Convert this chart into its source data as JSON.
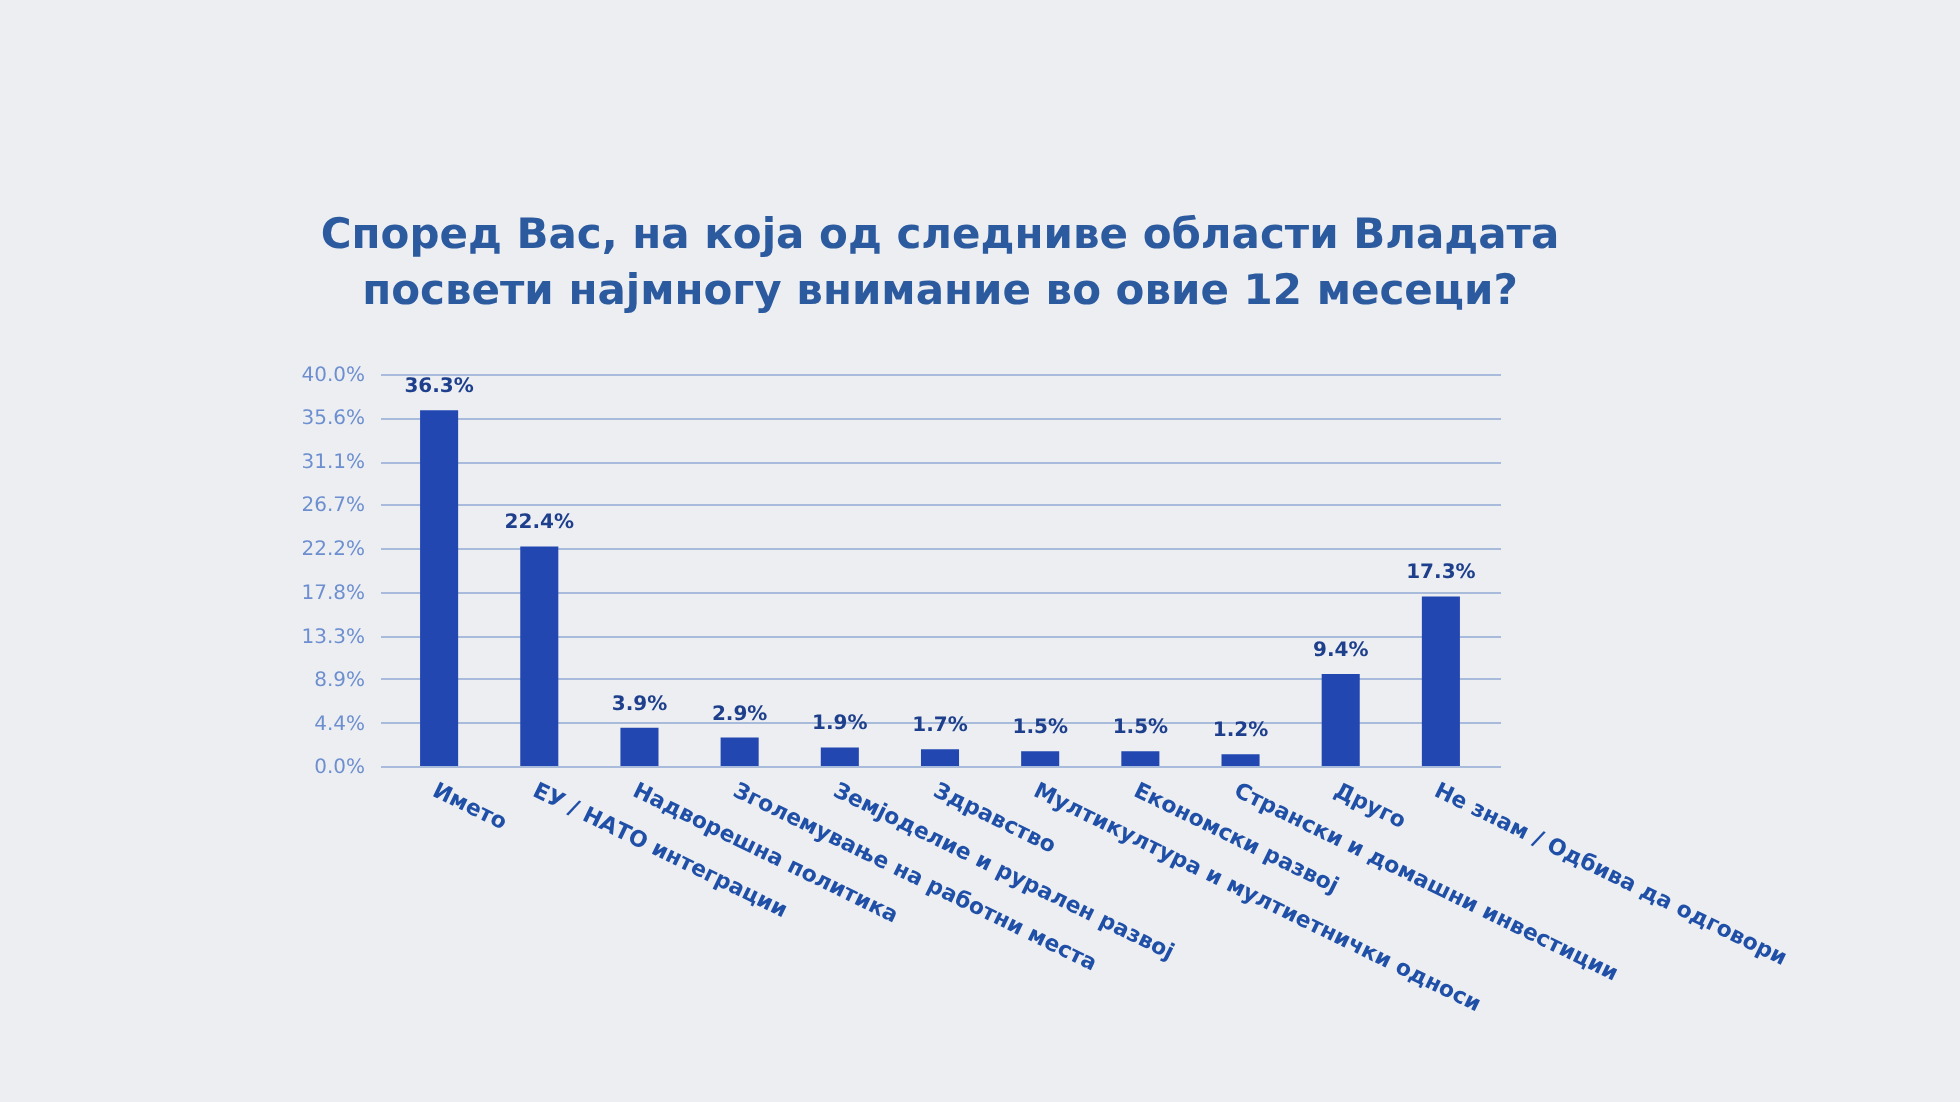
{
  "chart_data": {
    "type": "bar",
    "title": "Според Вас, на која од следниве области Владата посвети најмногу внимание во овие 12 месеци?",
    "categories": [
      "Името",
      "ЕУ / НАТО интеграции",
      "Надворешна политика",
      "Зголемување на работни места",
      "Земјоделие и рурален развој",
      "Здравство",
      "Мултикултура и мултиетнички односи",
      "Економски развој",
      "Странски и домашни инвестиции",
      "Друго",
      "Не знам / Одбива да одговори"
    ],
    "values": [
      36.3,
      22.4,
      3.9,
      2.9,
      1.9,
      1.7,
      1.5,
      1.5,
      1.2,
      9.4,
      17.3
    ],
    "value_labels": [
      "36.3%",
      "22.4%",
      "3.9%",
      "2.9%",
      "1.9%",
      "1.7%",
      "1.5%",
      "1.5%",
      "1.2%",
      "9.4%",
      "17.3%"
    ],
    "color": "#2347b1",
    "ylim": [
      0,
      40
    ],
    "yticks": [
      {
        "value": 0,
        "label": "0.0%"
      },
      {
        "value": 4.4,
        "label": "4.4%"
      },
      {
        "value": 8.9,
        "label": "8.9%"
      },
      {
        "value": 13.3,
        "label": "13.3%"
      },
      {
        "value": 17.8,
        "label": "17.8%"
      },
      {
        "value": 22.2,
        "label": "22.2%"
      },
      {
        "value": 26.7,
        "label": "26.7%"
      },
      {
        "value": 31.1,
        "label": "31.1%"
      },
      {
        "value": 35.6,
        "label": "35.6%"
      },
      {
        "value": 40,
        "label": "40.0%"
      }
    ],
    "grid": "y"
  }
}
